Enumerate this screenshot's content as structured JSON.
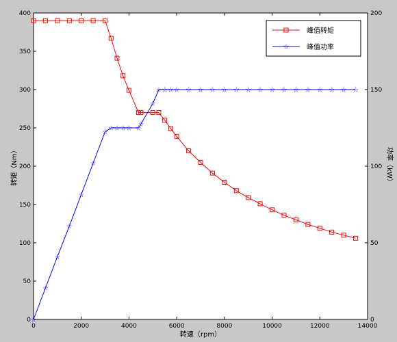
{
  "chart_data": {
    "type": "line",
    "xlabel": "转速（rpm）",
    "ylabel_left": "转矩（Nm）",
    "ylabel_right": "功率（kW）",
    "xlim": [
      0,
      14000
    ],
    "ylim_left": [
      0,
      400
    ],
    "ylim_right": [
      0,
      200
    ],
    "x_ticks": [
      "0",
      "2000",
      "4000",
      "6000",
      "8000",
      "10000",
      "12000",
      "14000"
    ],
    "y_ticks_left": [
      "0",
      "50",
      "100",
      "150",
      "200",
      "250",
      "300",
      "350",
      "400"
    ],
    "y_ticks_right": [
      "0",
      "50",
      "100",
      "150",
      "200"
    ],
    "grid": false,
    "legend_position": "top-right",
    "series": [
      {
        "name": "峰值转矩",
        "axis": "left",
        "color": "#ff0000",
        "marker": "square",
        "x": [
          0,
          500,
          1000,
          1500,
          2000,
          2500,
          3000,
          3250,
          3500,
          3750,
          4000,
          4400,
          4500,
          5000,
          5250,
          5500,
          5750,
          6000,
          6500,
          7000,
          7500,
          8000,
          8500,
          9000,
          9500,
          10000,
          10500,
          11000,
          11500,
          12000,
          12500,
          13000,
          13500
        ],
        "y": [
          390,
          390,
          390,
          390,
          390,
          390,
          390,
          367,
          341,
          318,
          299,
          270,
          270,
          270,
          270,
          260,
          249,
          239,
          220,
          205,
          191,
          179,
          168,
          159,
          151,
          143,
          136,
          130,
          124,
          119,
          114,
          110,
          106
        ]
      },
      {
        "name": "峰值功率",
        "axis": "right",
        "color": "#0000ff",
        "marker": "star",
        "x": [
          0,
          500,
          1000,
          1500,
          2000,
          2500,
          3000,
          3250,
          3500,
          3750,
          4000,
          4400,
          4500,
          5000,
          5250,
          5500,
          5750,
          6000,
          6500,
          7000,
          7500,
          8000,
          8500,
          9000,
          9500,
          10000,
          10500,
          11000,
          11500,
          12000,
          12500,
          13000,
          13500
        ],
        "y": [
          0,
          20.5,
          41,
          61,
          81.5,
          102,
          122.5,
          125,
          125,
          125,
          125,
          125,
          127.5,
          141,
          150,
          150,
          150,
          150,
          150,
          150,
          150,
          150,
          150,
          150,
          150,
          150,
          150,
          150,
          150,
          150,
          150,
          150,
          150
        ]
      }
    ]
  }
}
